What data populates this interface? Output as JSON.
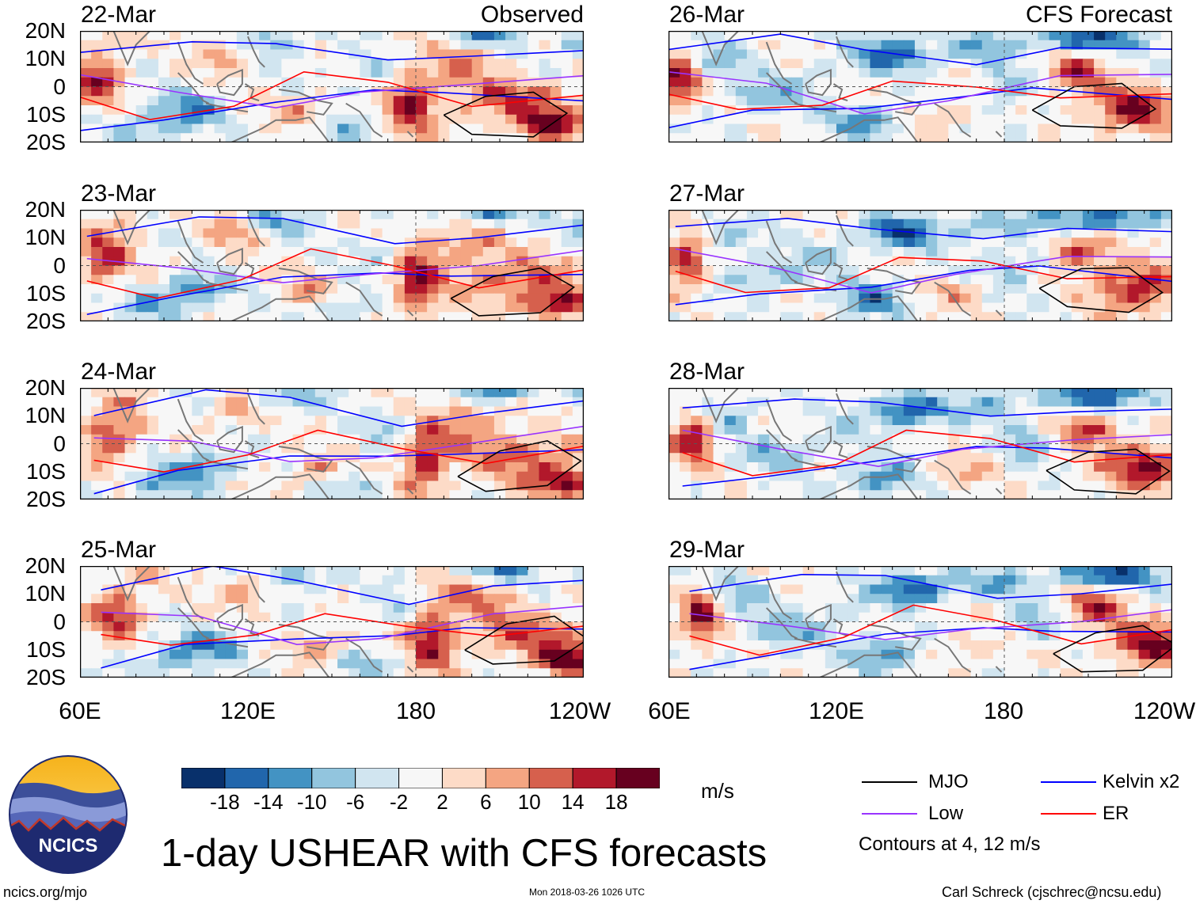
{
  "chart_data": {
    "type": "heatmap",
    "title": "1-day USHEAR with CFS forecasts",
    "variable": "USHEAR",
    "units": "m/s",
    "x_ticks": [
      "60E",
      "120E",
      "180",
      "120W"
    ],
    "y_ticks": [
      "20N",
      "10N",
      "0",
      "10S",
      "20S"
    ],
    "lon_range": [
      60,
      240
    ],
    "lat_range": [
      -20,
      20
    ],
    "columns": [
      {
        "label": "Observed",
        "dates": [
          "22-Mar",
          "23-Mar",
          "24-Mar",
          "25-Mar"
        ]
      },
      {
        "label": "CFS Forecast",
        "dates": [
          "26-Mar",
          "27-Mar",
          "28-Mar",
          "29-Mar"
        ]
      }
    ],
    "colorbar": {
      "ticks": [
        "-18",
        "-14",
        "-10",
        "-6",
        "-2",
        "2",
        "6",
        "10",
        "14",
        "18"
      ],
      "colors": [
        "#08306b",
        "#2166ac",
        "#4393c3",
        "#92c5de",
        "#d1e5f0",
        "#f7f7f7",
        "#fddbc7",
        "#f4a582",
        "#d6604d",
        "#b2182b",
        "#67001f"
      ]
    },
    "contour_legend": [
      {
        "name": "MJO",
        "color": "#000000"
      },
      {
        "name": "Kelvin x2",
        "color": "#0000ff"
      },
      {
        "name": "Low",
        "color": "#9933ff"
      },
      {
        "name": "ER",
        "color": "#ff0000"
      }
    ],
    "contour_note": "Contours at 4, 12 m/s",
    "land_color": "#777777"
  },
  "logo": {
    "text": "NCICS"
  },
  "footer": {
    "website": "ncics.org/mjo",
    "timestamp": "Mon 2018-03-26 1026 UTC",
    "author": "Carl Schreck (cjschrec@ncsu.edu)"
  }
}
